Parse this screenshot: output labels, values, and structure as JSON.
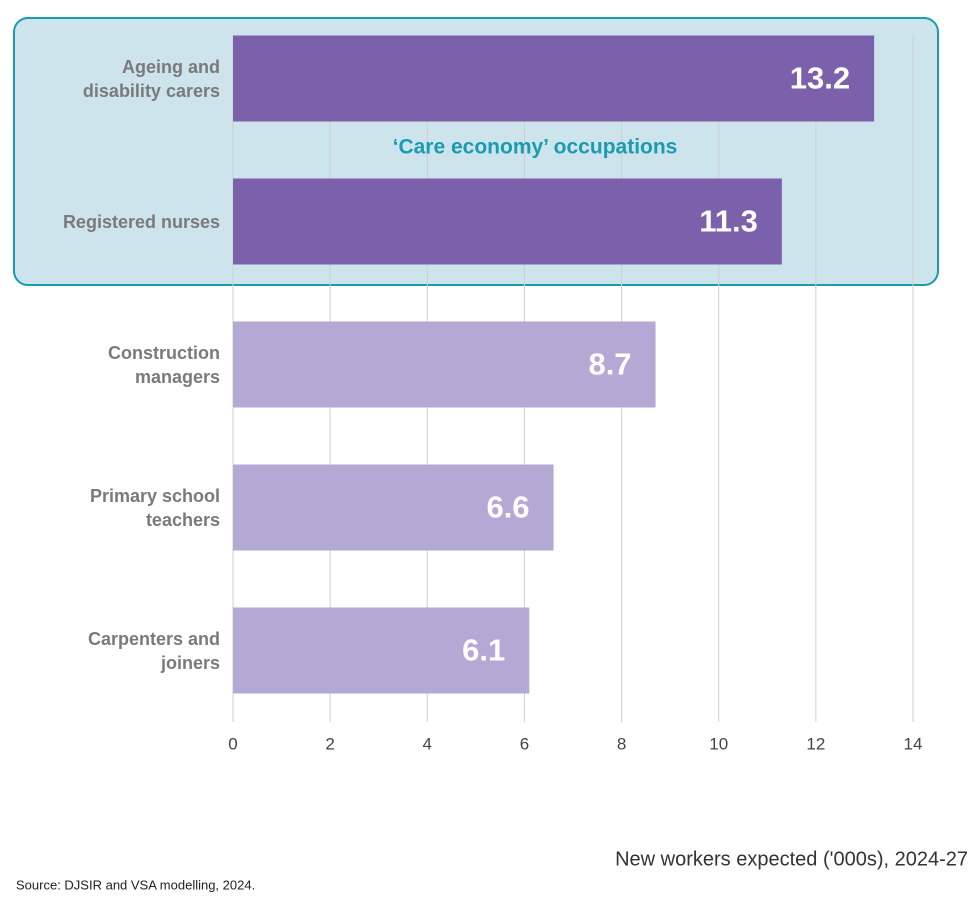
{
  "chart_data": {
    "type": "bar",
    "orientation": "horizontal",
    "categories": [
      "Ageing and disability carers",
      "Registered nurses",
      "Construction managers",
      "Primary school teachers",
      "Carpenters and joiners"
    ],
    "values": [
      13.2,
      11.3,
      8.7,
      6.6,
      6.1
    ],
    "colors": [
      "#7b61ab",
      "#7b61ab",
      "#b4a9d4",
      "#b4a9d4",
      "#b4a9d4"
    ],
    "highlight_label": "‘Care economy’ occupations",
    "xlim": [
      0,
      14
    ],
    "xticks": [
      0,
      2,
      4,
      6,
      8,
      10,
      12,
      14
    ],
    "grid": true,
    "x_label": "New workers expected ('000s), 2024-27",
    "source": "Source: DJSIR and VSA modelling, 2024."
  }
}
